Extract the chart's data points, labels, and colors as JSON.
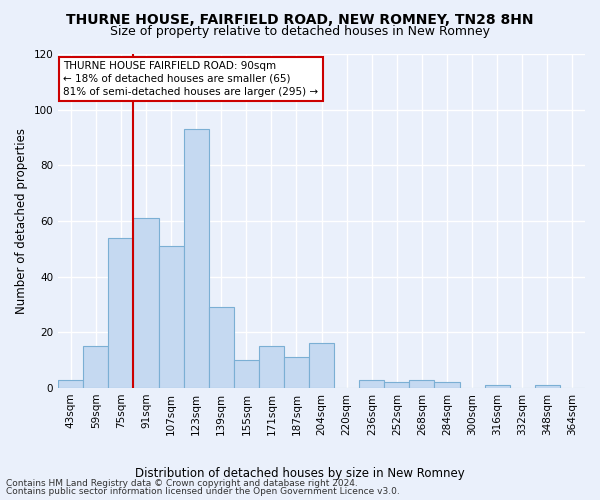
{
  "title": "THURNE HOUSE, FAIRFIELD ROAD, NEW ROMNEY, TN28 8HN",
  "subtitle": "Size of property relative to detached houses in New Romney",
  "xlabel": "Distribution of detached houses by size in New Romney",
  "ylabel": "Number of detached properties",
  "categories": [
    "43sqm",
    "59sqm",
    "75sqm",
    "91sqm",
    "107sqm",
    "123sqm",
    "139sqm",
    "155sqm",
    "171sqm",
    "187sqm",
    "204sqm",
    "220sqm",
    "236sqm",
    "252sqm",
    "268sqm",
    "284sqm",
    "300sqm",
    "316sqm",
    "332sqm",
    "348sqm",
    "364sqm"
  ],
  "values": [
    3,
    15,
    54,
    61,
    51,
    93,
    29,
    10,
    15,
    11,
    16,
    0,
    3,
    2,
    3,
    2,
    0,
    1,
    0,
    1,
    0
  ],
  "bar_color": "#c5d9f1",
  "bar_edge_color": "#7bafd4",
  "vline_color": "#cc0000",
  "vline_idx": 3,
  "ylim": [
    0,
    120
  ],
  "yticks": [
    0,
    20,
    40,
    60,
    80,
    100,
    120
  ],
  "annotation_text": "THURNE HOUSE FAIRFIELD ROAD: 90sqm\n← 18% of detached houses are smaller (65)\n81% of semi-detached houses are larger (295) →",
  "annotation_box_color": "#ffffff",
  "annotation_box_edge": "#cc0000",
  "footer_line1": "Contains HM Land Registry data © Crown copyright and database right 2024.",
  "footer_line2": "Contains public sector information licensed under the Open Government Licence v3.0.",
  "background_color": "#eaf0fb",
  "grid_color": "#ffffff",
  "title_fontsize": 10,
  "subtitle_fontsize": 9,
  "axis_label_fontsize": 8.5,
  "tick_fontsize": 7.5,
  "annotation_fontsize": 7.5,
  "footer_fontsize": 6.5
}
